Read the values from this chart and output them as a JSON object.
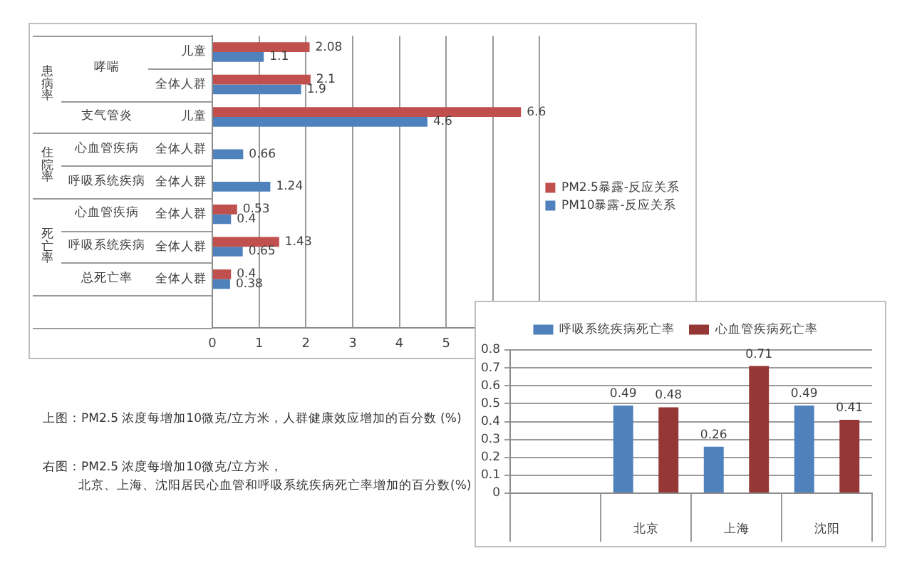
{
  "chart_data": [
    {
      "type": "bar",
      "orientation": "horizontal",
      "categories": [
        "儿童",
        "全体人群",
        "儿童",
        "全体人群",
        "全体人群",
        "全体人群",
        "全体人群",
        "全体人群",
        null
      ],
      "series": [
        {
          "name": "PM2.5暴露-反应关系",
          "color": "#c0504d",
          "values": [
            2.08,
            2.1,
            6.6,
            null,
            null,
            0.53,
            1.43,
            0.4,
            null
          ]
        },
        {
          "name": "PM10暴露-反应关系",
          "color": "#4f81bd",
          "values": [
            1.1,
            1.9,
            4.6,
            0.66,
            1.24,
            0.4,
            0.65,
            0.38,
            null
          ]
        }
      ],
      "xlim": [
        0,
        7
      ],
      "xticks": [
        0,
        1,
        2,
        3,
        4,
        5,
        {
          "value": 6,
          "label": null
        },
        {
          "value": 7,
          "label": null
        }
      ],
      "grid": "x",
      "legend": "right",
      "data_labels": true,
      "annotations": [
        "患病率",
        "哮喘",
        "支气管炎",
        "住院率",
        "心血管疾病",
        "呼吸系统疾病",
        "死亡率",
        "心血管疾病",
        "呼吸系统疾病",
        "总死亡率",
        "上图：PM2.5 浓度每增加10微克/立方米，人群健康效应增加的百分数 (%)"
      ]
    },
    {
      "type": "bar",
      "categories": [
        null,
        "北京",
        "上海",
        "沈阳"
      ],
      "series": [
        {
          "name": "呼吸系统疾病死亡率",
          "color": "#4f81bd",
          "values": [
            null,
            0.49,
            0.26,
            0.49
          ]
        },
        {
          "name": "心血管疾病死亡率",
          "color": "#953735",
          "values": [
            null,
            0.48,
            0.71,
            0.41
          ]
        }
      ],
      "ylim": [
        0,
        0.8
      ],
      "yticks": [
        0,
        0.1,
        0.2,
        0.3,
        0.4,
        0.5,
        0.6,
        0.7,
        0.8
      ],
      "grid": "y",
      "legend": "top",
      "data_labels": true,
      "annotations": [
        "右图：PM2.5 浓度每增加10微克/立方米，",
        "北京、上海、沈阳居民心血管和呼吸系统疾病死亡率增加的百分数(%)"
      ]
    }
  ]
}
